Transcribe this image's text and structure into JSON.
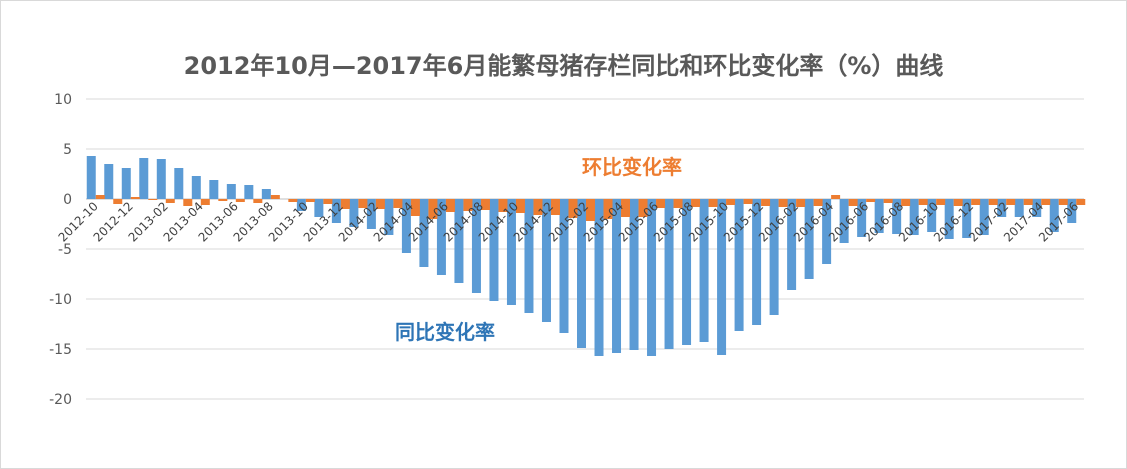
{
  "chart_data": {
    "type": "bar",
    "title": "2012年10月—2017年6月能繁母猪存栏同比和环比变化率（%）曲线",
    "ylim": [
      -20,
      10
    ],
    "yticks": [
      10,
      5,
      0,
      -5,
      -10,
      -15,
      -20
    ],
    "grid": true,
    "colors": {
      "yoy": "#5B9BD5",
      "mom": "#ED7D31"
    },
    "annotations": {
      "mom": "环比变化率",
      "yoy": "同比变化率"
    },
    "x_tick_labels": [
      "2012-10",
      "2012-12",
      "2013-02",
      "2013-04",
      "2013-06",
      "2013-08",
      "2013-10",
      "2013-12",
      "2014-02",
      "2014-04",
      "2014-06",
      "2014-08",
      "2014-10",
      "2014-12",
      "2015-02",
      "2015-04",
      "2015-06",
      "2015-08",
      "2015-10",
      "2015-12",
      "2016-02",
      "2016-04",
      "2016-06",
      "2016-08",
      "2016-10",
      "2016-12",
      "2017-02",
      "2017-04",
      "2017-06"
    ],
    "categories": [
      "2012-10",
      "2012-11",
      "2012-12",
      "2013-01",
      "2013-02",
      "2013-03",
      "2013-04",
      "2013-05",
      "2013-06",
      "2013-07",
      "2013-08",
      "2013-09",
      "2013-10",
      "2013-11",
      "2013-12",
      "2014-01",
      "2014-02",
      "2014-03",
      "2014-04",
      "2014-05",
      "2014-06",
      "2014-07",
      "2014-08",
      "2014-09",
      "2014-10",
      "2014-11",
      "2014-12",
      "2015-01",
      "2015-02",
      "2015-03",
      "2015-04",
      "2015-05",
      "2015-06",
      "2015-07",
      "2015-08",
      "2015-09",
      "2015-10",
      "2015-11",
      "2015-12",
      "2016-01",
      "2016-02",
      "2016-03",
      "2016-04",
      "2016-05",
      "2016-06",
      "2016-07",
      "2016-08",
      "2016-09",
      "2016-10",
      "2016-11",
      "2016-12",
      "2017-01",
      "2017-02",
      "2017-03",
      "2017-04",
      "2017-05",
      "2017-06"
    ],
    "series": [
      {
        "key": "yoy",
        "values": [
          4.3,
          3.5,
          3.1,
          4.1,
          4.0,
          3.1,
          2.3,
          1.9,
          1.5,
          1.4,
          1.0,
          0.0,
          -1.2,
          -1.8,
          -2.4,
          -2.8,
          -3.0,
          -3.6,
          -5.4,
          -6.8,
          -7.6,
          -8.4,
          -9.4,
          -10.2,
          -10.6,
          -11.4,
          -12.3,
          -13.4,
          -14.9,
          -15.7,
          -15.4,
          -15.1,
          -15.7,
          -15.0,
          -14.6,
          -14.3,
          -15.6,
          -13.2,
          -12.6,
          -11.6,
          -9.1,
          -8.0,
          -6.5,
          -4.4,
          -3.8,
          -3.4,
          -3.5,
          -3.6,
          -3.3,
          -4.0,
          -3.9,
          -3.6,
          -1.8,
          -1.8,
          -1.8,
          -3.3,
          -2.4
        ]
      },
      {
        "key": "mom",
        "values": [
          0.4,
          -0.5,
          0.2,
          -0.1,
          -0.4,
          -0.7,
          -0.6,
          -0.2,
          -0.3,
          -0.4,
          0.4,
          -0.3,
          -0.3,
          -0.5,
          -1.0,
          -0.9,
          -1.0,
          -0.9,
          -1.7,
          -2.0,
          -1.3,
          -1.2,
          -1.1,
          -1.3,
          -1.4,
          -1.6,
          -1.6,
          -1.9,
          -2.2,
          -2.0,
          -1.8,
          -1.8,
          -0.9,
          -0.9,
          -0.8,
          -0.8,
          -0.6,
          -0.5,
          -0.7,
          -0.8,
          -0.8,
          -0.7,
          0.4,
          -0.7,
          -0.3,
          -0.4,
          -0.7,
          -0.6,
          -0.6,
          -0.7,
          -0.6,
          -0.6,
          -0.6,
          -0.6,
          -0.6,
          -0.6,
          -0.6
        ]
      }
    ]
  }
}
